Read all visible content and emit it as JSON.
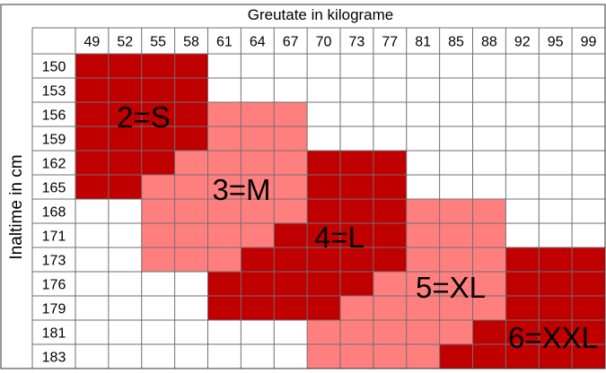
{
  "header": {
    "title": "Greutate in kilograme"
  },
  "side": {
    "label": "Inaltime in cm"
  },
  "colors": {
    "dark": "#c00000",
    "light": "#ff7f7f",
    "empty": "#ffffff",
    "grid": "#6f6f6f"
  },
  "chart_data": {
    "type": "table",
    "weights": [
      "49",
      "52",
      "55",
      "58",
      "61",
      "64",
      "67",
      "70",
      "73",
      "77",
      "81",
      "85",
      "88",
      "92",
      "95",
      "99"
    ],
    "heights": [
      "150",
      "153",
      "156",
      "159",
      "162",
      "165",
      "168",
      "171",
      "173",
      "176",
      "179",
      "181",
      "183"
    ],
    "sizes": {
      "S": {
        "label": "2=S",
        "shade": "dark"
      },
      "M": {
        "label": "3=M",
        "shade": "light"
      },
      "L": {
        "label": "4=L",
        "shade": "dark"
      },
      "XL": {
        "label": "5=XL",
        "shade": "light"
      },
      "XXL": {
        "label": "6=XXL",
        "shade": "dark"
      }
    },
    "grid": [
      [
        "S",
        "S",
        "S",
        "S",
        "",
        "",
        "",
        "",
        "",
        "",
        "",
        "",
        "",
        "",
        "",
        ""
      ],
      [
        "S",
        "S",
        "S",
        "S",
        "",
        "",
        "",
        "",
        "",
        "",
        "",
        "",
        "",
        "",
        "",
        ""
      ],
      [
        "S",
        "S",
        "S",
        "S",
        "M",
        "M",
        "M",
        "",
        "",
        "",
        "",
        "",
        "",
        "",
        "",
        ""
      ],
      [
        "S",
        "S",
        "S",
        "S",
        "M",
        "M",
        "M",
        "",
        "",
        "",
        "",
        "",
        "",
        "",
        "",
        ""
      ],
      [
        "S",
        "S",
        "S",
        "M",
        "M",
        "M",
        "M",
        "L",
        "L",
        "L",
        "",
        "",
        "",
        "",
        "",
        ""
      ],
      [
        "S",
        "S",
        "M",
        "M",
        "M",
        "M",
        "M",
        "L",
        "L",
        "L",
        "",
        "",
        "",
        "",
        "",
        ""
      ],
      [
        "",
        "",
        "M",
        "M",
        "M",
        "M",
        "M",
        "L",
        "L",
        "L",
        "XL",
        "XL",
        "XL",
        "",
        "",
        ""
      ],
      [
        "",
        "",
        "M",
        "M",
        "M",
        "M",
        "L",
        "L",
        "L",
        "L",
        "XL",
        "XL",
        "XL",
        "",
        "",
        ""
      ],
      [
        "",
        "",
        "M",
        "M",
        "M",
        "L",
        "L",
        "L",
        "L",
        "L",
        "XL",
        "XL",
        "XL",
        "XXL",
        "XXL",
        "XXL"
      ],
      [
        "",
        "",
        "",
        "",
        "L",
        "L",
        "L",
        "L",
        "L",
        "XL",
        "XL",
        "XL",
        "XL",
        "XXL",
        "XXL",
        "XXL"
      ],
      [
        "",
        "",
        "",
        "",
        "L",
        "L",
        "L",
        "L",
        "XL",
        "XL",
        "XL",
        "XL",
        "XL",
        "XXL",
        "XXL",
        "XXL"
      ],
      [
        "",
        "",
        "",
        "",
        "",
        "",
        "",
        "XL",
        "XL",
        "XL",
        "XL",
        "XL",
        "XXL",
        "XXL",
        "XXL",
        "XXL"
      ],
      [
        "",
        "",
        "",
        "",
        "",
        "",
        "",
        "XL",
        "XL",
        "XL",
        "XL",
        "XXL",
        "XXL",
        "XXL",
        "XXL",
        "XXL"
      ]
    ]
  }
}
